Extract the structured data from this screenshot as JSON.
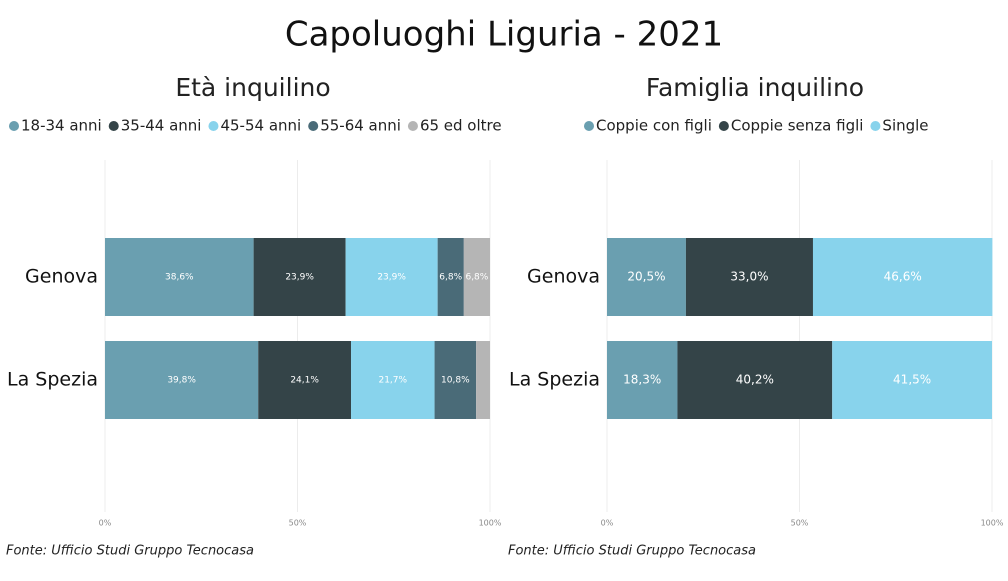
{
  "title": "Capoluoghi Liguria - 2021",
  "chart_data": [
    {
      "type": "bar",
      "orientation": "horizontal",
      "stacked": true,
      "title": "Età inquilino",
      "categories": [
        "Genova",
        "La Spezia"
      ],
      "series": [
        {
          "name": "18-34 anni",
          "color": "#6a9fb0",
          "values": [
            38.6,
            39.8
          ],
          "value_labels": [
            "38,6%",
            "39,8%"
          ]
        },
        {
          "name": "35-44 anni",
          "color": "#344448",
          "values": [
            23.9,
            24.1
          ],
          "value_labels": [
            "23,9%",
            "24,1%"
          ]
        },
        {
          "name": "45-54 anni",
          "color": "#88d3ec",
          "values": [
            23.9,
            21.7
          ],
          "value_labels": [
            "23,9%",
            "21,7%"
          ]
        },
        {
          "name": "55-64 anni",
          "color": "#4a6b78",
          "values": [
            6.8,
            10.8
          ],
          "value_labels": [
            "6,8%",
            "10,8%"
          ]
        },
        {
          "name": "65 ed oltre",
          "color": "#b5b5b5",
          "values": [
            6.8,
            3.6
          ],
          "value_labels": [
            "6,8%",
            null
          ]
        }
      ],
      "xlim": [
        0,
        100
      ],
      "xticks": [
        {
          "value": 0,
          "label": "0%"
        },
        {
          "value": 50,
          "label": "50%"
        },
        {
          "value": 100,
          "label": "100%"
        }
      ],
      "grid": true,
      "legend": "top",
      "source": "Fonte: Ufficio Studi Gruppo Tecnocasa"
    },
    {
      "type": "bar",
      "orientation": "horizontal",
      "stacked": true,
      "title": "Famiglia inquilino",
      "categories": [
        "Genova",
        "La Spezia"
      ],
      "series": [
        {
          "name": "Coppie con figli",
          "color": "#6a9fb0",
          "values": [
            20.5,
            18.3
          ],
          "value_labels": [
            "20,5%",
            "18,3%"
          ]
        },
        {
          "name": "Coppie senza figli",
          "color": "#344448",
          "values": [
            33.0,
            40.2
          ],
          "value_labels": [
            "33,0%",
            "40,2%"
          ]
        },
        {
          "name": "Single",
          "color": "#88d3ec",
          "values": [
            46.6,
            41.5
          ],
          "value_labels": [
            "46,6%",
            "41,5%"
          ]
        }
      ],
      "xlim": [
        0,
        100
      ],
      "xticks": [
        {
          "value": 0,
          "label": "0%"
        },
        {
          "value": 50,
          "label": "50%"
        },
        {
          "value": 100,
          "label": "100%"
        }
      ],
      "grid": true,
      "legend": "top",
      "source": "Fonte: Ufficio Studi Gruppo Tecnocasa"
    }
  ]
}
